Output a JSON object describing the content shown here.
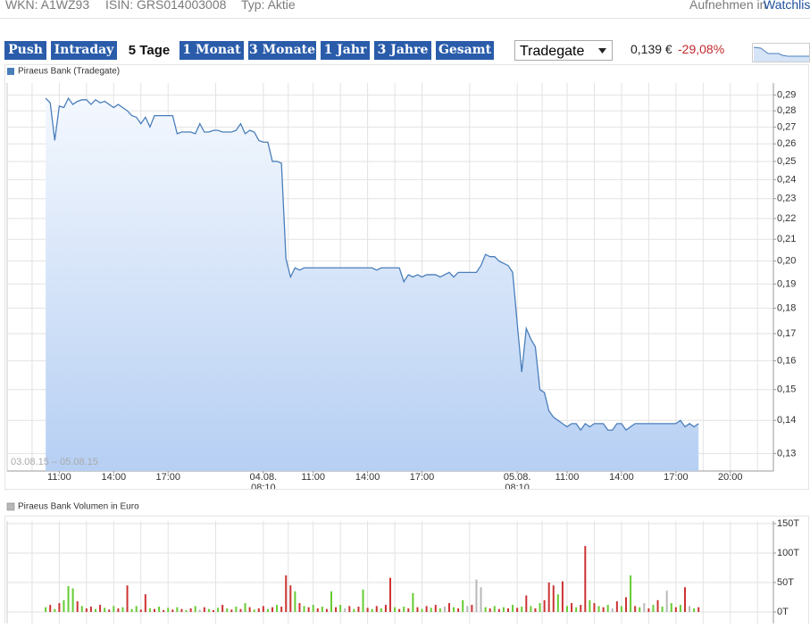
{
  "header": {
    "wkn": "WKN: A1WZ93",
    "isin": "ISIN: GRS014003008",
    "type": "Typ: Aktie",
    "watch_prefix": "Aufnehmen in",
    "watch_link": "Watchlist"
  },
  "periods": [
    "Push",
    "Intraday",
    "5 Tage",
    "1 Monat",
    "3 Monate",
    "1 Jahr",
    "3 Jahre",
    "Gesamt"
  ],
  "quote": {
    "exchange": "Tradegate",
    "price": "0,139 €",
    "change": "-29,08%"
  },
  "chart_data": [
    {
      "type": "area",
      "log_scale": true,
      "grid": true,
      "annotation": "03.08.15 – 05.08.15",
      "categories": [
        null,
        null,
        null,
        null,
        null,
        null,
        null,
        null,
        null,
        null,
        null,
        "11:00",
        null,
        null,
        null,
        null,
        null,
        null,
        null,
        null,
        null,
        null,
        null,
        "14:00",
        null,
        null,
        null,
        null,
        null,
        null,
        null,
        null,
        null,
        null,
        null,
        "17:00",
        null,
        null,
        null,
        null,
        null,
        null,
        null,
        null,
        null,
        null,
        null,
        null,
        null,
        null,
        null,
        null,
        null,
        null,
        null,
        null,
        "04.08. 08:10",
        null,
        null,
        null,
        null,
        null,
        null,
        null,
        null,
        null,
        null,
        "11:00",
        null,
        null,
        null,
        null,
        null,
        null,
        null,
        null,
        null,
        null,
        null,
        "14:00",
        null,
        null,
        null,
        null,
        null,
        null,
        null,
        null,
        null,
        null,
        null,
        "17:00",
        null,
        null,
        null,
        null,
        null,
        null,
        null,
        null,
        null,
        null,
        null,
        null,
        null,
        null,
        null,
        null,
        null,
        null,
        null,
        null,
        "05.08. 08:10",
        null,
        null,
        null,
        null,
        null,
        null,
        null,
        null,
        null,
        null,
        "11:00",
        null,
        null,
        null,
        null,
        null,
        null,
        null,
        null,
        null,
        null,
        null,
        "14:00",
        null,
        null,
        null,
        null,
        null,
        null,
        null,
        null,
        null,
        null,
        null,
        "17:00",
        null,
        null,
        null,
        null,
        null,
        null,
        null,
        null,
        null,
        null,
        null,
        "20:00",
        null,
        null,
        null,
        null,
        null,
        null,
        null,
        null,
        null
      ],
      "series": [
        {
          "name": "Piraeus Bank (Tradegate)",
          "color": "#4a7ebb",
          "values": [
            null,
            null,
            null,
            null,
            null,
            null,
            null,
            null,
            0.288,
            0.285,
            0.262,
            0.283,
            0.282,
            0.288,
            0.284,
            0.286,
            0.287,
            0.287,
            0.284,
            0.287,
            0.285,
            0.286,
            0.284,
            0.282,
            0.284,
            0.282,
            0.28,
            0.277,
            0.276,
            0.272,
            0.276,
            0.27,
            0.277,
            0.277,
            0.277,
            0.277,
            0.277,
            0.266,
            0.267,
            0.267,
            0.267,
            0.266,
            0.272,
            0.267,
            0.267,
            0.268,
            0.268,
            0.267,
            0.267,
            0.267,
            0.268,
            0.272,
            0.266,
            0.268,
            0.267,
            0.262,
            0.261,
            0.261,
            0.25,
            0.25,
            0.249,
            0.201,
            0.193,
            0.197,
            0.196,
            0.197,
            0.197,
            0.197,
            0.197,
            0.197,
            0.197,
            0.197,
            0.197,
            0.197,
            0.197,
            0.197,
            0.197,
            0.197,
            0.197,
            0.197,
            0.197,
            0.196,
            0.197,
            0.197,
            0.197,
            0.197,
            0.197,
            0.191,
            0.194,
            0.193,
            0.194,
            0.193,
            0.194,
            0.194,
            0.194,
            0.193,
            0.194,
            0.195,
            0.193,
            0.195,
            0.195,
            0.195,
            0.195,
            0.195,
            0.198,
            0.203,
            0.202,
            0.202,
            0.2,
            0.199,
            0.198,
            0.195,
            0.174,
            0.156,
            0.172,
            0.168,
            0.165,
            0.15,
            0.149,
            0.143,
            0.141,
            0.14,
            0.139,
            0.138,
            0.139,
            0.139,
            0.137,
            0.139,
            0.138,
            0.139,
            0.139,
            0.139,
            0.137,
            0.137,
            0.139,
            0.139,
            0.137,
            0.138,
            0.139,
            0.139,
            0.139,
            0.139,
            0.139,
            0.139,
            0.139,
            0.139,
            0.139,
            0.139,
            0.14,
            0.138,
            0.139,
            0.138,
            0.139,
            null,
            null,
            null,
            null,
            null,
            null,
            null,
            null,
            null,
            null,
            null,
            null,
            null,
            null,
            null,
            null
          ]
        }
      ],
      "ylim": [
        0.125,
        0.298
      ],
      "yticks": [
        {
          "value": 0.13,
          "label": "0,13"
        },
        {
          "value": 0.14,
          "label": "0,14"
        },
        {
          "value": 0.15,
          "label": "0,15"
        },
        {
          "value": 0.16,
          "label": "0,16"
        },
        {
          "value": 0.17,
          "label": "0,17"
        },
        {
          "value": 0.18,
          "label": "0,18"
        },
        {
          "value": 0.19,
          "label": "0,19"
        },
        {
          "value": 0.2,
          "label": "0,20"
        },
        {
          "value": 0.21,
          "label": "0,21"
        },
        {
          "value": 0.22,
          "label": "0,22"
        },
        {
          "value": 0.23,
          "label": "0,23"
        },
        {
          "value": 0.24,
          "label": "0,24"
        },
        {
          "value": 0.25,
          "label": "0,25"
        },
        {
          "value": 0.26,
          "label": "0,26"
        },
        {
          "value": 0.27,
          "label": "0,27"
        },
        {
          "value": 0.28,
          "label": "0,28"
        },
        {
          "value": 0.29,
          "label": "0,29"
        }
      ]
    },
    {
      "type": "bar",
      "grid": true,
      "series": [
        {
          "name": "Piraeus Bank Volumen in Euro",
          "color": "#b8b8b8",
          "values": [
            null,
            null,
            null,
            null,
            null,
            null,
            null,
            null,
            8000,
            12000,
            5000,
            15000,
            20000,
            44000,
            40000,
            18000,
            10000,
            6000,
            9000,
            5000,
            12000,
            7000,
            4000,
            10000,
            6000,
            8000,
            45000,
            5000,
            10000,
            4000,
            30000,
            6000,
            5000,
            9000,
            3000,
            7000,
            4000,
            8000,
            5000,
            3000,
            6000,
            10000,
            4000,
            8000,
            5000,
            3000,
            7000,
            12000,
            6000,
            4000,
            9000,
            5000,
            15000,
            8000,
            4000,
            6000,
            10000,
            5000,
            8000,
            12000,
            9000,
            62000,
            45000,
            35000,
            15000,
            10000,
            8000,
            12000,
            6000,
            9000,
            5000,
            35000,
            8000,
            12000,
            6000,
            10000,
            5000,
            9000,
            38000,
            7000,
            5000,
            10000,
            6000,
            12000,
            58000,
            8000,
            5000,
            9000,
            6000,
            32000,
            8000,
            5000,
            10000,
            7000,
            12000,
            6000,
            9000,
            15000,
            8000,
            6000,
            20000,
            10000,
            12000,
            55000,
            42000,
            8000,
            6000,
            10000,
            5000,
            8000,
            6000,
            12000,
            7000,
            9000,
            28000,
            10000,
            6000,
            15000,
            20000,
            50000,
            45000,
            30000,
            52000,
            10000,
            15000,
            8000,
            12000,
            112000,
            20000,
            15000,
            10000,
            8000,
            12000,
            6000,
            18000,
            10000,
            25000,
            62000,
            10000,
            8000,
            15000,
            6000,
            12000,
            20000,
            9000,
            36000,
            15000,
            8000,
            12000,
            42000,
            10000,
            6000,
            8000,
            null,
            null,
            null,
            null,
            null,
            null,
            null,
            null,
            null,
            null,
            null,
            null,
            null,
            null,
            null,
            null
          ],
          "colors": [
            null,
            null,
            null,
            null,
            null,
            null,
            null,
            null,
            "#66cc33",
            "#cc3333",
            "#66cc33",
            "#cc3333",
            "#66cc33",
            "#66cc33",
            "#66cc33",
            "#cc3333",
            "#66cc33",
            "#cc3333",
            "#cc3333",
            "#66cc33",
            "#cc3333",
            "#66cc33",
            "#cc3333",
            "#66cc33",
            "#cc3333",
            "#66cc33",
            "#cc3333",
            "#66cc33",
            "#66cc33",
            "#cc3333",
            "#cc3333",
            "#66cc33",
            "#cc3333",
            "#66cc33",
            "#cc3333",
            "#66cc33",
            "#cc3333",
            "#66cc33",
            "#cc3333",
            "#66cc33",
            "#cc3333",
            "#66cc33",
            "#b8b8b8",
            "#cc3333",
            "#66cc33",
            "#cc3333",
            "#66cc33",
            "#cc3333",
            "#66cc33",
            "#cc3333",
            "#66cc33",
            "#cc3333",
            "#66cc33",
            "#cc3333",
            "#66cc33",
            "#cc3333",
            "#cc3333",
            "#66cc33",
            "#cc3333",
            "#66cc33",
            "#cc3333",
            "#cc3333",
            "#cc3333",
            "#66cc33",
            "#cc3333",
            "#66cc33",
            "#cc3333",
            "#66cc33",
            "#cc3333",
            "#66cc33",
            "#cc3333",
            "#66cc33",
            "#cc3333",
            "#66cc33",
            "#b8b8b8",
            "#cc3333",
            "#66cc33",
            "#cc3333",
            "#66cc33",
            "#cc3333",
            "#66cc33",
            "#cc3333",
            "#66cc33",
            "#cc3333",
            "#cc3333",
            "#66cc33",
            "#cc3333",
            "#66cc33",
            "#cc3333",
            "#66cc33",
            "#cc3333",
            "#66cc33",
            "#cc3333",
            "#66cc33",
            "#cc3333",
            "#66cc33",
            "#b8b8b8",
            "#cc3333",
            "#66cc33",
            "#cc3333",
            "#66cc33",
            "#b8b8b8",
            "#cc3333",
            "#b8b8b8",
            "#b8b8b8",
            "#66cc33",
            "#cc3333",
            "#66cc33",
            "#cc3333",
            "#66cc33",
            "#cc3333",
            "#66cc33",
            "#cc3333",
            "#66cc33",
            "#cc3333",
            "#66cc33",
            "#cc3333",
            "#66cc33",
            "#cc3333",
            "#cc3333",
            "#cc3333",
            "#66cc33",
            "#cc3333",
            "#66cc33",
            "#cc3333",
            "#66cc33",
            "#cc3333",
            "#cc3333",
            "#66cc33",
            "#cc3333",
            "#66cc33",
            "#cc3333",
            "#66cc33",
            "#b8b8b8",
            "#cc3333",
            "#66cc33",
            "#cc3333",
            "#66cc33",
            "#cc3333",
            "#66cc33",
            "#b8b8b8",
            "#cc3333",
            "#66cc33",
            "#cc3333",
            "#66cc33",
            "#b8b8b8",
            "#66cc33",
            "#cc3333",
            "#66cc33",
            "#cc3333",
            "#b8b8b8",
            "#66cc33",
            "#cc3333",
            null,
            null,
            null,
            null,
            null,
            null,
            null,
            null,
            null,
            null,
            null,
            null,
            null,
            null,
            null,
            null
          ]
        }
      ],
      "ylim": [
        -19700,
        154500
      ],
      "yticks": [
        {
          "value": 0,
          "label": "0T"
        },
        {
          "value": 50000,
          "label": "50T"
        },
        {
          "value": 100000,
          "label": "100T"
        },
        {
          "value": 150000,
          "label": "150T"
        }
      ]
    }
  ]
}
